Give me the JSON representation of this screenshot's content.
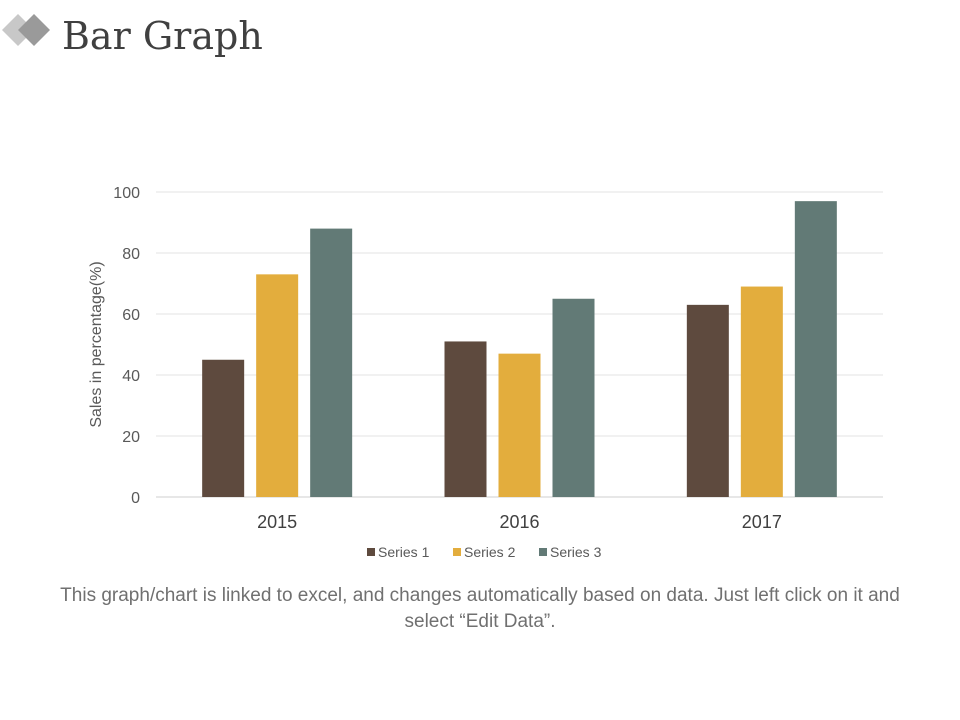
{
  "slide": {
    "title": "Bar Graph",
    "caption": "This graph/chart is linked to excel, and changes automatically based on data. Just left click on it and select “Edit Data”."
  },
  "chart_data": {
    "type": "bar",
    "title": "",
    "xlabel": "",
    "ylabel": "Sales in percentage(%)",
    "categories": [
      "2015",
      "2016",
      "2017"
    ],
    "series": [
      {
        "name": "Series 1",
        "values": [
          45,
          51,
          63
        ],
        "color": "#5e4a3e"
      },
      {
        "name": "Series 2",
        "values": [
          73,
          47,
          69
        ],
        "color": "#e3ad3d"
      },
      {
        "name": "Series 3",
        "values": [
          88,
          65,
          97
        ],
        "color": "#627a76"
      }
    ],
    "ylim": [
      0,
      100
    ],
    "yticks": [
      0,
      20,
      40,
      60,
      80,
      100
    ],
    "grid": true,
    "legend": "bottom"
  }
}
